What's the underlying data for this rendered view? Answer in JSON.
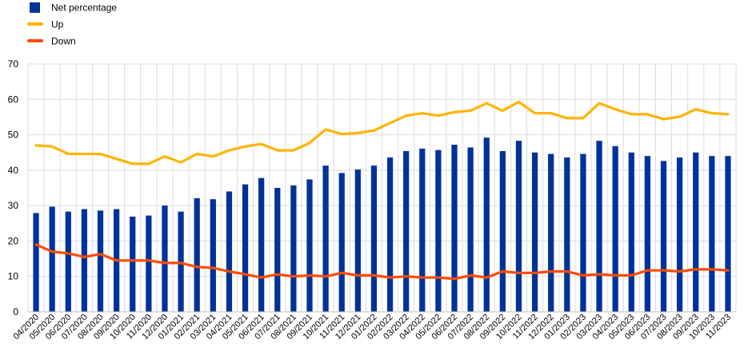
{
  "chart_data": {
    "type": "bar",
    "title": "",
    "xlabel": "",
    "ylabel": "",
    "ylim": [
      0,
      70
    ],
    "yticks": [
      0,
      10,
      20,
      30,
      40,
      50,
      60,
      70
    ],
    "grid": {
      "horizontal": true,
      "vertical": true,
      "style": "light-grey"
    },
    "legend": {
      "position": "top-left",
      "orientation": "vertical"
    },
    "categories": [
      "04/2020",
      "05/2020",
      "06/2020",
      "07/2020",
      "08/2020",
      "09/2020",
      "10/2020",
      "11/2020",
      "12/2020",
      "01/2021",
      "02/2021",
      "03/2021",
      "04/2021",
      "05/2021",
      "06/2021",
      "07/2021",
      "08/2021",
      "09/2021",
      "10/2021",
      "11/2021",
      "12/2021",
      "01/2022",
      "02/2022",
      "03/2022",
      "04/2022",
      "05/2022",
      "06/2022",
      "07/2022",
      "08/2022",
      "09/2022",
      "10/2022",
      "11/2022",
      "12/2022",
      "01/2023",
      "02/2023",
      "03/2023",
      "04/2023",
      "05/2023",
      "06/2023",
      "07/2023",
      "08/2023",
      "09/2023",
      "10/2023",
      "11/2023"
    ],
    "series": [
      {
        "name": "Net percentage",
        "kind": "bar",
        "color": "#003299",
        "values": [
          27.9,
          29.7,
          28.3,
          29.0,
          28.6,
          29.0,
          26.9,
          27.2,
          30.0,
          28.3,
          32.1,
          31.8,
          34.0,
          36.0,
          37.8,
          35.0,
          35.7,
          37.4,
          41.3,
          39.2,
          40.2,
          41.3,
          43.6,
          45.4,
          46.1,
          45.7,
          47.2,
          46.4,
          49.2,
          45.4,
          48.3,
          45.0,
          44.6,
          43.6,
          44.6,
          48.3,
          46.8,
          45.0,
          44.0,
          42.6,
          43.6,
          45.0,
          44.0,
          44.0
        ]
      },
      {
        "name": "Up",
        "kind": "line",
        "color": "#FFB400",
        "values": [
          47.0,
          46.7,
          44.6,
          44.6,
          44.6,
          43.2,
          41.8,
          41.8,
          43.9,
          42.2,
          44.6,
          43.9,
          45.6,
          46.7,
          47.4,
          45.6,
          45.6,
          47.7,
          51.5,
          50.2,
          50.5,
          51.2,
          53.3,
          55.4,
          56.1,
          55.4,
          56.4,
          56.8,
          58.9,
          56.8,
          59.3,
          56.1,
          56.1,
          54.7,
          54.7,
          58.9,
          57.2,
          55.8,
          55.8,
          54.4,
          55.1,
          57.2,
          56.1,
          55.8
        ]
      },
      {
        "name": "Down",
        "kind": "line",
        "color": "#FF4B00",
        "values": [
          19.0,
          17.0,
          16.5,
          15.5,
          16.3,
          14.5,
          14.5,
          14.5,
          13.8,
          13.8,
          12.7,
          12.4,
          11.4,
          10.6,
          9.7,
          10.6,
          10.0,
          10.3,
          10.0,
          11.0,
          10.3,
          10.3,
          9.7,
          10.0,
          9.7,
          9.7,
          9.3,
          10.3,
          9.7,
          11.4,
          11.0,
          11.0,
          11.4,
          11.4,
          10.3,
          10.6,
          10.3,
          10.3,
          11.7,
          11.7,
          11.4,
          12.0,
          12.0,
          11.7
        ]
      }
    ]
  }
}
